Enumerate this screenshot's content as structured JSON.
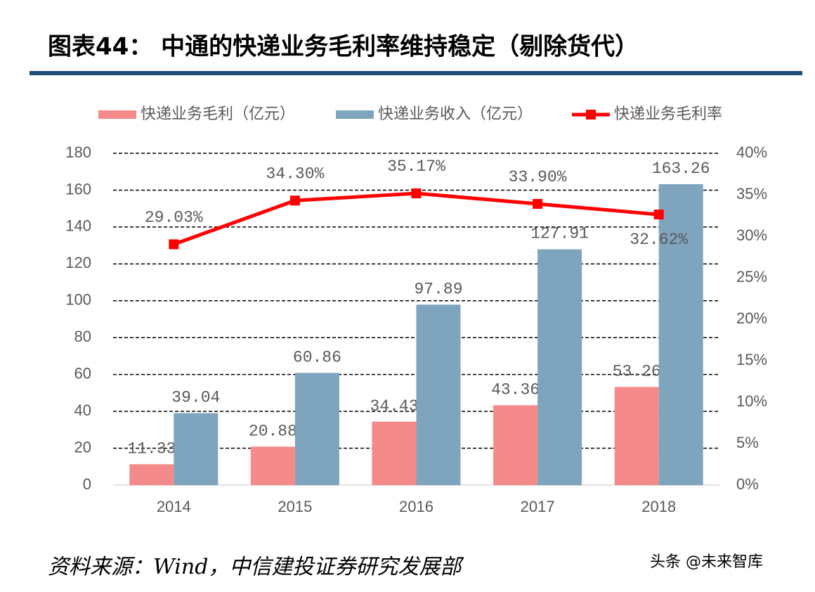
{
  "title": "图表44：  中通的快递业务毛利率维持稳定（剔除货代）",
  "chart_data": {
    "type": "bar",
    "categories": [
      "2014",
      "2015",
      "2016",
      "2017",
      "2018"
    ],
    "series": [
      {
        "name": "快递业务毛利（亿元）",
        "type": "bar",
        "color": "#f58a8a",
        "values": [
          11.33,
          20.88,
          34.43,
          43.36,
          53.26
        ]
      },
      {
        "name": "快递业务收入（亿元）",
        "type": "bar",
        "color": "#7fa4bd",
        "values": [
          39.04,
          60.86,
          97.89,
          127.91,
          163.26
        ]
      },
      {
        "name": "快递业务毛利率",
        "type": "line",
        "axis": "y2",
        "color": "#ff0000",
        "values": [
          29.03,
          34.3,
          35.17,
          33.9,
          32.62
        ],
        "value_labels": [
          "29.03%",
          "34.30%",
          "35.17%",
          "33.90%",
          "32.62%"
        ]
      }
    ],
    "ylim": [
      0,
      180
    ],
    "yticks": [
      0,
      20,
      40,
      60,
      80,
      100,
      120,
      140,
      160,
      180
    ],
    "y2lim": [
      0,
      40
    ],
    "y2ticks": [
      {
        "value": 0,
        "label": "0%"
      },
      {
        "value": 5,
        "label": "5%"
      },
      {
        "value": 10,
        "label": "10%"
      },
      {
        "value": 15,
        "label": "15%"
      },
      {
        "value": 20,
        "label": "20%"
      },
      {
        "value": 25,
        "label": "25%"
      },
      {
        "value": 30,
        "label": "30%"
      },
      {
        "value": 35,
        "label": "35%"
      },
      {
        "value": 40,
        "label": "40%"
      }
    ],
    "grid": true,
    "legend": "top"
  },
  "source": "资料来源：Wind，中信建投证券研究发展部",
  "watermark": "头条 @未来智库"
}
